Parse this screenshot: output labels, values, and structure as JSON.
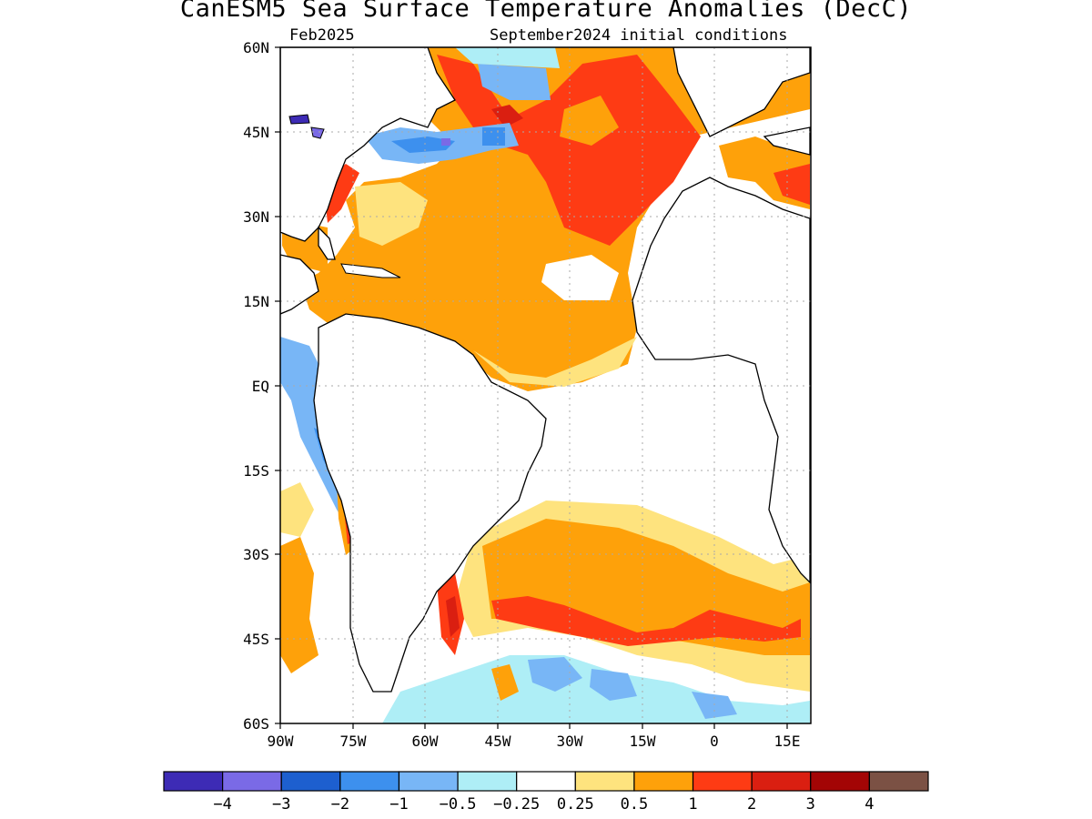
{
  "title": "CanESM5 Sea Surface Temperature Anomalies (DecC)",
  "valid_month": "Feb2025",
  "init_label": "September2024 initial conditions",
  "lat_labels": [
    "60N",
    "45N",
    "30N",
    "15N",
    "EQ",
    "15S",
    "30S",
    "45S",
    "60S"
  ],
  "lon_labels": [
    "90W",
    "75W",
    "60W",
    "45W",
    "30W",
    "15W",
    "0",
    "15E"
  ],
  "colorbar": {
    "colors": [
      "#3d2bb5",
      "#7a6ae6",
      "#1d5fcf",
      "#3d90ee",
      "#78b6f6",
      "#aeeef6",
      "#ffffff",
      "#fee37e",
      "#fea10a",
      "#fe3b14",
      "#da1f11",
      "#a30505",
      "#7b5144"
    ],
    "labels": [
      "−4",
      "−3",
      "−2",
      "−1",
      "−0.5",
      "−0.25",
      "0.25",
      "0.5",
      "1",
      "2",
      "3",
      "4"
    ]
  },
  "map": {
    "region": "Atlantic Ocean, 60S–60N, 90W–20E",
    "legend_colors": {
      "land": "#ffffff",
      "coastline": "#000000",
      "grid": "#aaaaaa"
    }
  }
}
